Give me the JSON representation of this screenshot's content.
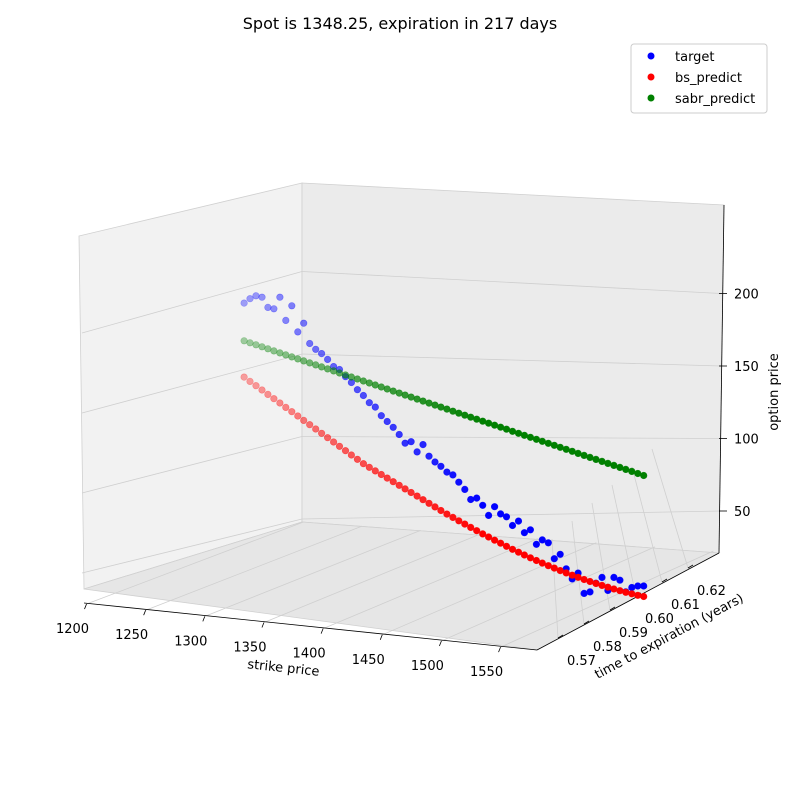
{
  "chart_data": {
    "type": "scatter",
    "projection": "3d",
    "title": "Spot is 1348.25, expiration in 217 days",
    "xlabel": "strike price",
    "ylabel": "time to expiration (years)",
    "zlabel": "option price",
    "xticks": [
      "1200",
      "1250",
      "1300",
      "1350",
      "1400",
      "1450",
      "1500",
      "1550"
    ],
    "yticks": [
      "0.57",
      "0.58",
      "0.59",
      "0.60",
      "0.61",
      "0.62"
    ],
    "zticks": [
      "50",
      "100",
      "150",
      "200"
    ],
    "xlim": [
      1200,
      1575
    ],
    "zlim": [
      23,
      243
    ],
    "grid": true,
    "legend_position": "top-right",
    "strikes_start": 1225,
    "strikes_step": 5,
    "series": [
      {
        "name": "target",
        "color": "#0000ff",
        "values": [
          212,
          215,
          217,
          216,
          209,
          208,
          216,
          200,
          210,
          192,
          198,
          184,
          180,
          177,
          173,
          168,
          166,
          161,
          157,
          152,
          148,
          143,
          140,
          134,
          130,
          126,
          121,
          115,
          116,
          109,
          114,
          106,
          102,
          99,
          95,
          93,
          88,
          83,
          76,
          77,
          72,
          65,
          71,
          66,
          64,
          58,
          61,
          53,
          55,
          45,
          48,
          46,
          35,
          38,
          28,
          21,
          25,
          11,
          12,
          18,
          22,
          13,
          22,
          20,
          12,
          15,
          16,
          16
        ]
      },
      {
        "name": "bs_predict",
        "color": "#ff0000",
        "values": [
          161,
          158,
          155,
          152,
          149,
          146,
          143,
          140,
          137,
          134,
          131,
          128,
          125,
          122,
          119,
          116,
          113,
          110,
          107,
          104,
          101,
          98.5,
          96,
          93.5,
          91,
          88.5,
          86,
          83.5,
          81,
          78.5,
          76,
          73.5,
          71,
          68.5,
          66,
          63.7,
          61.4,
          59.1,
          56.8,
          54.5,
          52.3,
          50.1,
          47.9,
          45.8,
          43.7,
          41.6,
          39.6,
          37.6,
          35.7,
          33.8,
          32,
          30.2,
          28.5,
          26.8,
          25.2,
          23.6,
          22.1,
          20.6,
          19.2,
          17.8,
          16.5,
          15.2,
          14,
          12.8,
          11.7,
          10.6,
          9.6,
          8.7
        ]
      },
      {
        "name": "sabr_predict",
        "color": "#008000",
        "values": [
          186,
          184.6,
          183.2,
          181.8,
          180.4,
          179,
          177.6,
          176.2,
          174.8,
          173.4,
          172,
          170.6,
          169.2,
          167.8,
          166.4,
          165,
          163.6,
          162.2,
          160.8,
          159.4,
          158,
          156.6,
          155.2,
          153.8,
          152.4,
          151,
          149.6,
          148.2,
          146.8,
          145.4,
          144,
          142.6,
          141.2,
          139.8,
          138.4,
          137,
          135.6,
          134.2,
          132.8,
          131.4,
          130,
          128.6,
          127.2,
          125.8,
          124.4,
          123,
          121.6,
          120.2,
          118.8,
          117.4,
          116,
          114.6,
          113.2,
          111.8,
          110.4,
          109,
          107.6,
          106.2,
          104.8,
          103.4,
          102,
          100.6,
          99.2,
          97.8,
          96.4,
          95,
          93.6,
          92.2
        ]
      }
    ]
  }
}
